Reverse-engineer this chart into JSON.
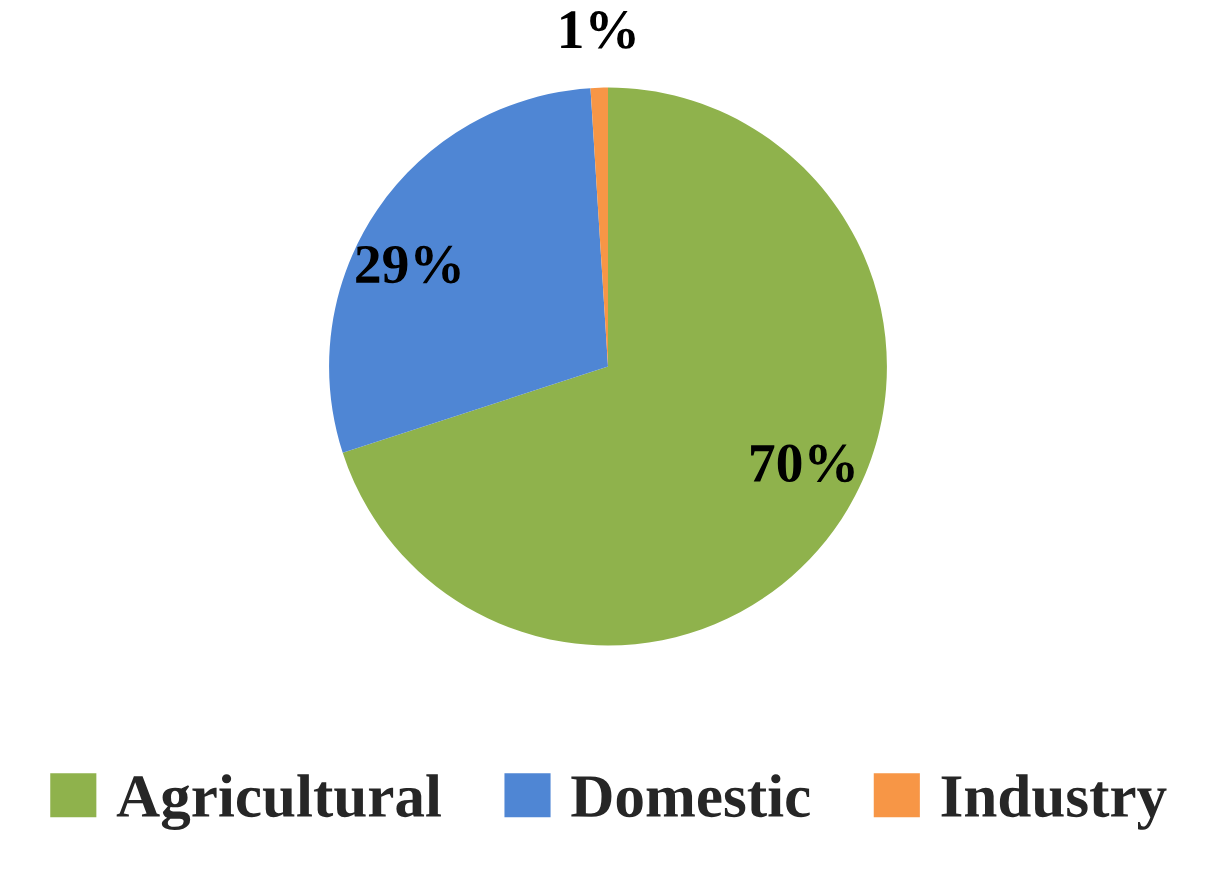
{
  "chart_data": {
    "type": "pie",
    "categories": [
      "Agricultural",
      "Domestic",
      "Industry"
    ],
    "values": [
      70,
      29,
      1
    ],
    "colors": [
      "#8fb24c",
      "#4f86d4",
      "#f79646"
    ],
    "value_labels": [
      "70%",
      "29%",
      "1%"
    ],
    "legend": "bottom"
  }
}
